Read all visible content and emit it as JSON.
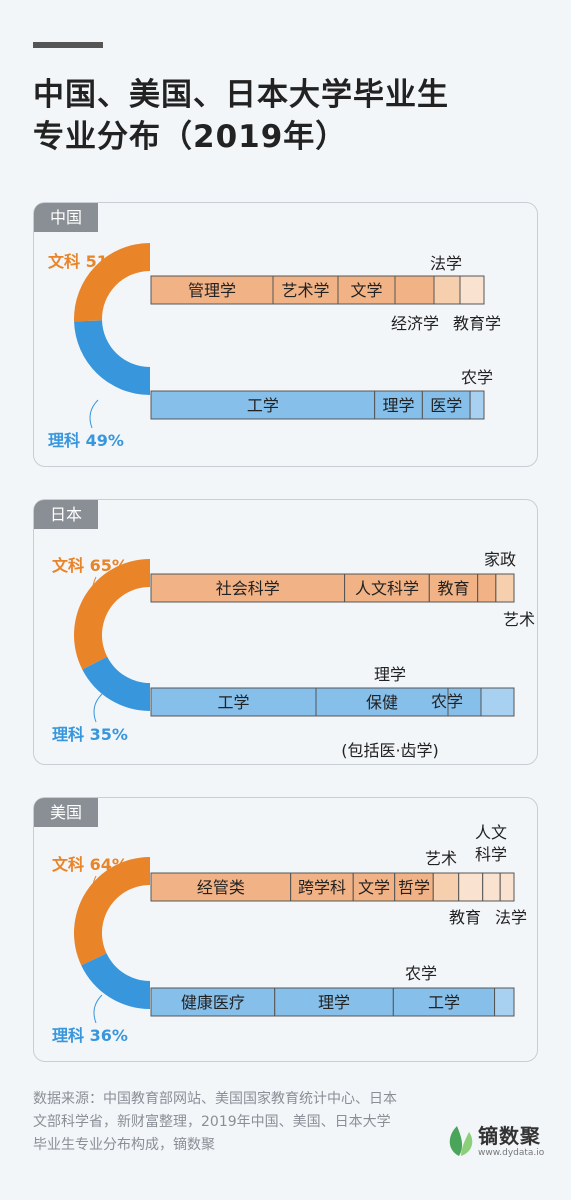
{
  "title": [
    "中国、美国、日本大学毕业生",
    "专业分布（2019年）"
  ],
  "colors": {
    "arts": "#e98429",
    "arts_light": "#f1b285",
    "arts_lighter": "#f6cfae",
    "arts_lightest": "#f9e2cf",
    "science": "#3896dc",
    "science_light": "#86bfea",
    "science_lighter": "#a8d1f1",
    "border": "#555555"
  },
  "chart_data": [
    {
      "type": "bar",
      "country": "中国",
      "arts": {
        "label": "文科",
        "pct_text": "51%",
        "share": 51,
        "segments": [
          {
            "label": "管理学",
            "value": 12.2
          },
          {
            "label": "艺术学",
            "value": 6.5
          },
          {
            "label": "文学",
            "value": 5.7
          },
          {
            "label": "经济学",
            "value": 3.9
          },
          {
            "label": "教育学",
            "value": 2.6
          },
          {
            "label": "法学",
            "value": 2.4
          }
        ]
      },
      "science": {
        "label": "理科",
        "pct_text": "49%",
        "share": 49,
        "segments": [
          {
            "label": "工学",
            "value": 22.5
          },
          {
            "label": "理学",
            "value": 4.8
          },
          {
            "label": "医学",
            "value": 4.8
          },
          {
            "label": "农学",
            "value": 1.4
          }
        ]
      }
    },
    {
      "type": "bar",
      "country": "日本",
      "arts": {
        "label": "文科",
        "pct_text": "65%",
        "share": 65,
        "segments": [
          {
            "label": "社会科学",
            "value": 32
          },
          {
            "label": "人文科学",
            "value": 14
          },
          {
            "label": "教育",
            "value": 8
          },
          {
            "label": "家政",
            "value": 3
          },
          {
            "label": "艺术",
            "value": 3
          }
        ]
      },
      "science": {
        "label": "理科",
        "pct_text": "35%",
        "share": 35,
        "segments": [
          {
            "label": "工学",
            "value": 15
          },
          {
            "label": "保健",
            "sublabel": "(包括医·齿学)",
            "value": 12
          },
          {
            "label": "理学",
            "value": 3
          },
          {
            "label": "农学",
            "value": 3
          }
        ]
      }
    },
    {
      "type": "bar",
      "country": "美国",
      "arts": {
        "label": "文科",
        "pct_text": "64%",
        "share": 64,
        "segments": [
          {
            "label": "经管类",
            "value": 19.2
          },
          {
            "label": "跨学科",
            "value": 8.6
          },
          {
            "label": "文学",
            "value": 5.7
          },
          {
            "label": "哲学",
            "value": 5.3
          },
          {
            "label": "艺术",
            "value": 3.5
          },
          {
            "label": "教育",
            "value": 3.3
          },
          {
            "label": "人文科学",
            "value": 2.4
          },
          {
            "label": "法学",
            "value": 1.9
          }
        ]
      },
      "science": {
        "label": "理科",
        "pct_text": "36%",
        "share": 36,
        "segments": [
          {
            "label": "健康医疗",
            "value": 12.1
          },
          {
            "label": "理学",
            "value": 11.6
          },
          {
            "label": "工学",
            "value": 9.9
          },
          {
            "label": "农学",
            "value": 1.9
          }
        ]
      }
    }
  ],
  "footer": "数据来源：中国教育部网站、美国国家教育统计中心、日本文部科学省，新财富整理，2019年中国、美国、日本大学毕业生专业分布构成，镝数聚",
  "logo": {
    "name": "镝数聚",
    "url": "www.dydata.io"
  }
}
